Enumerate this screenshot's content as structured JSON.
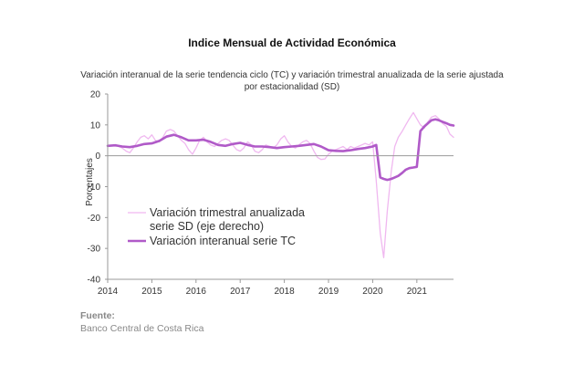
{
  "chart_data": {
    "type": "line",
    "title": "Indice Mensual de  Actividad Económica",
    "subtitle": "Variación interanual de la serie tendencia ciclo (TC) y variación trimestral anualizada de la serie ajustada por estacionalidad (SD)",
    "ylabel": "Porcentajes",
    "ylim": [
      -40,
      20
    ],
    "yticks": [
      20,
      10,
      0,
      -10,
      -20,
      -30,
      -40
    ],
    "xlim": [
      2014.0,
      2021.83
    ],
    "xticks": [
      "2014",
      "2015",
      "2016",
      "2017",
      "2018",
      "2019",
      "2020",
      "2021"
    ],
    "grid": false,
    "zero_line": true,
    "legend_position": "center-left",
    "series": [
      {
        "name": "Variación trimestral anualizada serie SD (eje derecho)",
        "legend_lines": [
          "Variación trimestral anualizada",
          "serie SD (eje derecho)"
        ],
        "color": "#f0b8f0",
        "width": 1.3,
        "x": [
          2014.0,
          2014.17,
          2014.33,
          2014.42,
          2014.5,
          2014.58,
          2014.67,
          2014.75,
          2014.83,
          2014.92,
          2015.0,
          2015.08,
          2015.17,
          2015.25,
          2015.33,
          2015.42,
          2015.5,
          2015.58,
          2015.67,
          2015.75,
          2015.83,
          2015.92,
          2016.0,
          2016.08,
          2016.17,
          2016.25,
          2016.33,
          2016.42,
          2016.5,
          2016.58,
          2016.67,
          2016.75,
          2016.83,
          2016.92,
          2017.0,
          2017.08,
          2017.17,
          2017.25,
          2017.33,
          2017.42,
          2017.5,
          2017.58,
          2017.67,
          2017.75,
          2017.83,
          2017.92,
          2018.0,
          2018.08,
          2018.17,
          2018.25,
          2018.33,
          2018.42,
          2018.5,
          2018.58,
          2018.67,
          2018.75,
          2018.83,
          2018.92,
          2019.0,
          2019.08,
          2019.17,
          2019.25,
          2019.33,
          2019.42,
          2019.5,
          2019.58,
          2019.67,
          2019.75,
          2019.83,
          2019.92,
          2020.0,
          2020.08,
          2020.17,
          2020.25,
          2020.33,
          2020.42,
          2020.5,
          2020.58,
          2020.67,
          2020.75,
          2020.83,
          2020.92,
          2021.0,
          2021.08,
          2021.17,
          2021.25,
          2021.33,
          2021.42,
          2021.5,
          2021.58,
          2021.67,
          2021.75,
          2021.83
        ],
        "y": [
          3.2,
          3.5,
          2.5,
          1.5,
          1.0,
          2.5,
          4.5,
          6.0,
          6.5,
          5.5,
          6.8,
          5.0,
          4.5,
          6.0,
          8.0,
          8.5,
          8.0,
          6.5,
          5.0,
          4.0,
          2.0,
          0.5,
          2.5,
          5.0,
          6.0,
          4.5,
          3.5,
          3.0,
          4.0,
          5.0,
          5.5,
          5.0,
          3.5,
          2.0,
          1.5,
          2.5,
          4.5,
          3.5,
          1.5,
          1.0,
          2.0,
          3.5,
          3.0,
          2.5,
          3.5,
          5.5,
          6.5,
          4.5,
          3.0,
          2.5,
          3.5,
          4.5,
          5.0,
          4.0,
          1.5,
          -0.5,
          -1.2,
          -1.0,
          0.5,
          1.5,
          2.0,
          2.5,
          3.0,
          2.0,
          3.0,
          2.5,
          3.0,
          3.5,
          4.0,
          3.5,
          4.5,
          -8.0,
          -25.0,
          -33.0,
          -18.0,
          -5.0,
          3.0,
          6.0,
          8.0,
          10.0,
          12.0,
          14.0,
          12.0,
          10.0,
          9.0,
          11.0,
          12.5,
          13.0,
          12.0,
          10.5,
          9.5,
          7.0,
          6.0
        ]
      },
      {
        "name": "Variación interanual serie TC",
        "legend_lines": [
          "Variación interanual serie TC"
        ],
        "color": "#b05ac8",
        "width": 2.6,
        "x": [
          2014.0,
          2014.17,
          2014.33,
          2014.5,
          2014.67,
          2014.83,
          2015.0,
          2015.17,
          2015.33,
          2015.5,
          2015.67,
          2015.83,
          2016.0,
          2016.17,
          2016.33,
          2016.5,
          2016.67,
          2016.83,
          2017.0,
          2017.17,
          2017.33,
          2017.5,
          2017.67,
          2017.83,
          2018.0,
          2018.17,
          2018.33,
          2018.5,
          2018.67,
          2018.83,
          2019.0,
          2019.17,
          2019.33,
          2019.5,
          2019.67,
          2019.83,
          2020.0,
          2020.08,
          2020.17,
          2020.25,
          2020.33,
          2020.42,
          2020.5,
          2020.58,
          2020.67,
          2020.75,
          2020.83,
          2020.92,
          2021.0,
          2021.08,
          2021.17,
          2021.25,
          2021.33,
          2021.42,
          2021.5,
          2021.58,
          2021.67,
          2021.75,
          2021.83
        ],
        "y": [
          3.2,
          3.4,
          3.0,
          2.8,
          3.2,
          3.8,
          4.0,
          4.8,
          6.2,
          6.8,
          6.0,
          5.0,
          5.0,
          5.2,
          4.5,
          3.5,
          3.2,
          3.8,
          4.2,
          3.5,
          3.0,
          3.0,
          2.8,
          2.5,
          2.8,
          3.0,
          3.2,
          3.5,
          3.8,
          3.0,
          1.8,
          1.6,
          1.5,
          1.8,
          2.2,
          2.5,
          3.0,
          3.5,
          -7.0,
          -7.5,
          -7.8,
          -7.5,
          -7.0,
          -6.5,
          -5.5,
          -4.5,
          -4.0,
          -3.8,
          -3.6,
          8.0,
          9.5,
          10.5,
          11.5,
          11.8,
          11.5,
          11.0,
          10.5,
          10.0,
          9.8
        ]
      }
    ]
  },
  "source": {
    "label": "Fuente:",
    "text": "Banco Central de Costa Rica"
  }
}
